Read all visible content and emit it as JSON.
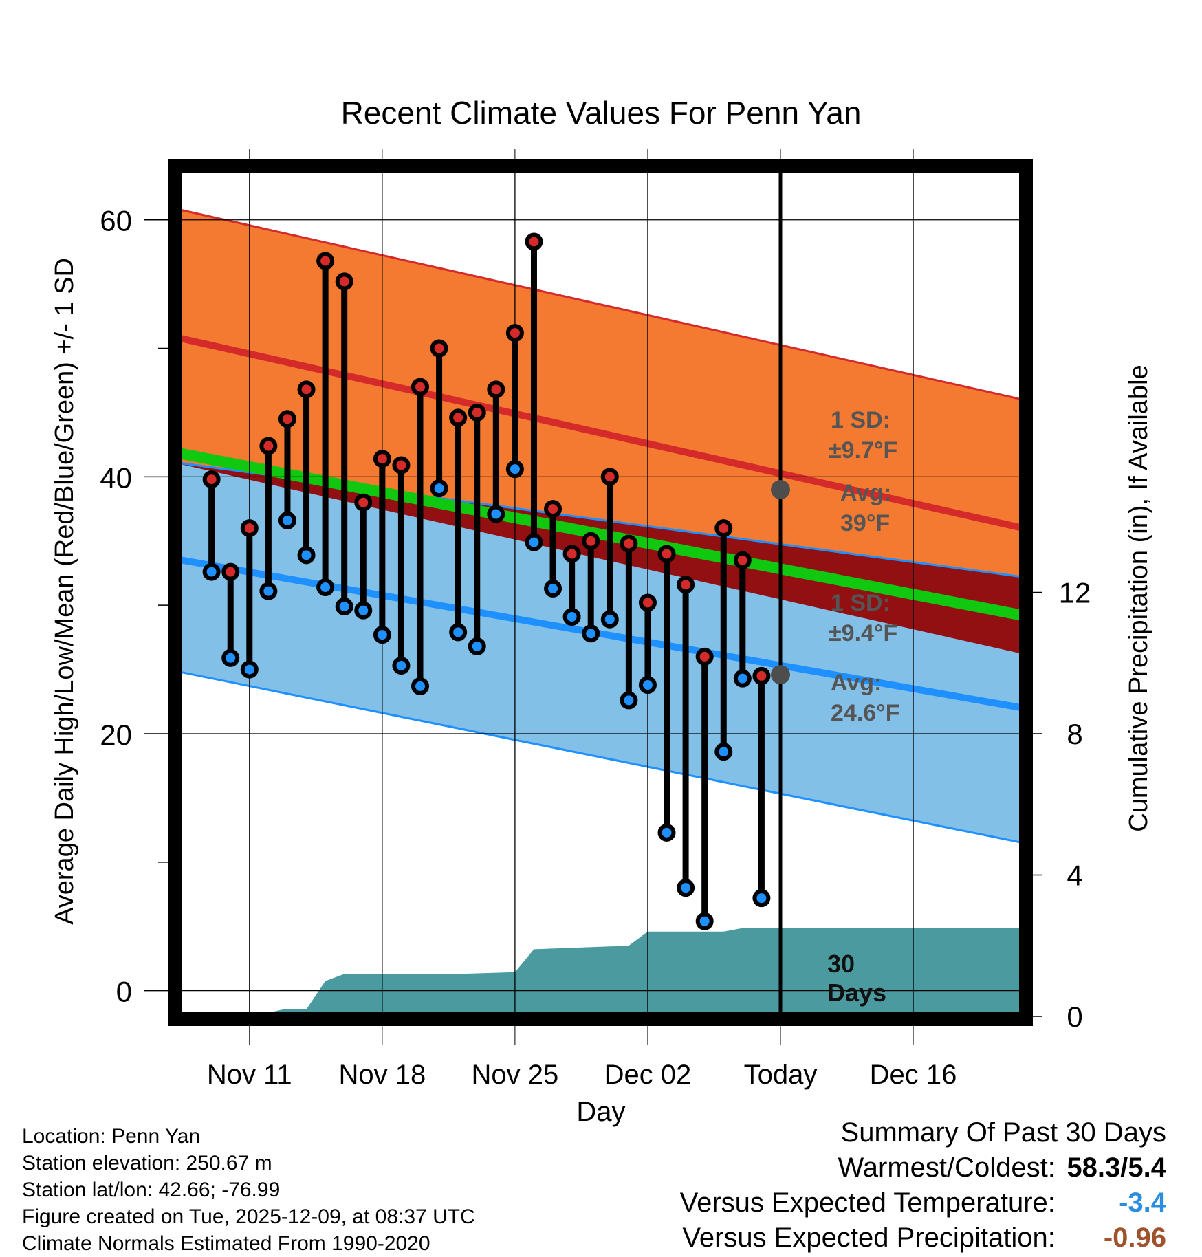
{
  "chart_data": {
    "type": "line",
    "title": "Recent Climate Values For Penn Yan",
    "xlabel": "Day",
    "ylabel": "Average Daily High/Low/Mean (Red/Blue/Green) +/- 1 SD",
    "y2label": "Cumulative Precipitation (in), If Available",
    "ylim": [
      -2,
      64
    ],
    "y2lim": [
      0,
      24
    ],
    "xlim": [
      -3.8,
      40.8
    ],
    "yticks": [
      "0",
      "20",
      "40",
      "60"
    ],
    "y2ticks": [
      "0",
      "4",
      "8",
      "12"
    ],
    "xticks": [
      {
        "label": "Nov 11",
        "day": 0
      },
      {
        "label": "Nov 18",
        "day": 7
      },
      {
        "label": "Nov 25",
        "day": 14
      },
      {
        "label": "Dec 02",
        "day": 21
      },
      {
        "label": "Today",
        "day": 28
      },
      {
        "label": "Dec 16",
        "day": 35
      }
    ],
    "days": [
      -2,
      -1,
      0,
      1,
      2,
      3,
      4,
      5,
      6,
      7,
      8,
      9,
      10,
      11,
      12,
      13,
      14,
      15,
      16,
      17,
      18,
      19,
      20,
      21,
      22,
      23,
      24,
      25,
      26,
      27
    ],
    "highs": [
      39.8,
      32.6,
      36.0,
      42.4,
      44.5,
      46.8,
      56.8,
      55.2,
      38.0,
      41.4,
      40.9,
      47.0,
      50.0,
      44.6,
      45.0,
      46.8,
      51.2,
      58.3,
      37.5,
      34.0,
      35.0,
      40.0,
      34.8,
      30.2,
      34.0,
      31.6,
      26.0,
      36.0,
      33.5,
      24.5
    ],
    "lows": [
      32.6,
      25.9,
      25.0,
      31.1,
      36.6,
      33.9,
      31.4,
      29.9,
      29.6,
      27.7,
      25.3,
      23.7,
      39.1,
      27.9,
      26.8,
      37.1,
      40.6,
      34.9,
      31.3,
      29.1,
      27.8,
      28.9,
      22.6,
      23.8,
      12.3,
      8.0,
      5.4,
      18.6,
      24.3,
      7.2
    ],
    "normals": {
      "days": [
        -4.3,
        40.8
      ],
      "high_mean": [
        51.0,
        36.0
      ],
      "high_upper": [
        61.0,
        46.0
      ],
      "low_mean": [
        33.7,
        22.0
      ],
      "low_lower": [
        25.0,
        11.5
      ],
      "mean_line": [
        42.0,
        29.2
      ],
      "high_lower": [
        41.2,
        26.2
      ],
      "low_upper": [
        41.2,
        32.2
      ]
    },
    "precip": {
      "points": [
        [
          -4.3,
          0
        ],
        [
          0.2,
          0
        ],
        [
          1.8,
          0.2
        ],
        [
          3,
          0.2
        ],
        [
          4,
          1
        ],
        [
          5,
          1.2
        ],
        [
          11,
          1.2
        ],
        [
          14,
          1.25
        ],
        [
          15,
          1.9
        ],
        [
          20,
          2
        ],
        [
          21,
          2.4
        ],
        [
          25,
          2.4
        ],
        [
          26,
          2.5
        ],
        [
          40.8,
          2.5
        ]
      ]
    },
    "today_markers": [
      {
        "label1": "1 SD:",
        "label2": "±9.7°F",
        "avg1": "Avg:",
        "avg2": "39°F",
        "avg": 39.0
      },
      {
        "label1": "1 SD:",
        "label2": "±9.4°F",
        "avg1": "Avg:",
        "avg2": "24.6°F",
        "avg": 24.6
      }
    ],
    "precip_label": [
      "30",
      "Days"
    ]
  },
  "info": {
    "location": "Location: Penn Yan",
    "elevation": "Station elevation: 250.67 m",
    "latlon": "Station lat/lon: 42.66; -76.99",
    "created": "Figure created on Tue, 2025-12-09, at 08:37 UTC",
    "normals": "Climate Normals Estimated From 1990-2020"
  },
  "summary": {
    "title": "Summary Of Past 30 Days",
    "warmest_label": "Warmest/Coldest:",
    "warmest_value": "58.3/5.4",
    "temp_label": "Versus Expected Temperature:",
    "temp_value": "-3.4",
    "temp_color": "#2a8de0",
    "precip_label": "Versus Expected Precipitation:",
    "precip_value": "-0.96",
    "precip_color": "#a0522d"
  },
  "colors": {
    "high_band": "#f37a30",
    "high_line": "#d42a2a",
    "low_band": "#82c0e8",
    "low_line": "#1e90ff",
    "mean_line": "#10c810",
    "overlap_band": "#920f12",
    "precip_fill": "#4a9aa0",
    "marker_high": "#d42a2a",
    "marker_low": "#1e90ff",
    "annotation": "#555555"
  }
}
